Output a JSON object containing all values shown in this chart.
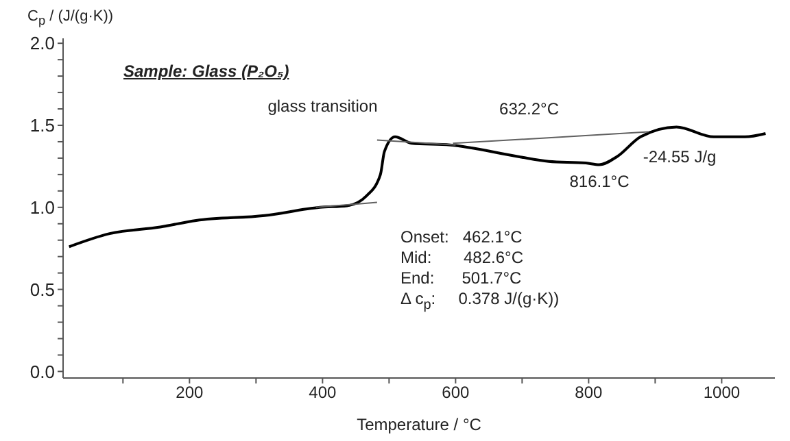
{
  "chart_data": {
    "type": "line",
    "title": "Sample: Glass (P₂O₅)",
    "xlabel": "Temperature / °C",
    "ylabel": "C$_{p}$ / (J/(g·K))",
    "xlim": [
      10,
      1080
    ],
    "ylim": [
      -0.04,
      2.03
    ],
    "xticks": [
      {
        "value": 100,
        "label": null
      },
      200,
      {
        "value": 300,
        "label": null
      },
      400,
      {
        "value": 500,
        "label": null
      },
      600,
      {
        "value": 700,
        "label": null
      },
      800,
      {
        "value": 900,
        "label": null
      },
      1000
    ],
    "yticks": [
      {
        "value": 0,
        "label": "0.0"
      },
      {
        "value": 0.1,
        "label": null
      },
      {
        "value": 0.2,
        "label": null
      },
      {
        "value": 0.3,
        "label": null
      },
      {
        "value": 0.4,
        "label": null
      },
      {
        "value": 0.5,
        "label": "0.5"
      },
      {
        "value": 0.6,
        "label": null
      },
      {
        "value": 0.7,
        "label": null
      },
      {
        "value": 0.8,
        "label": null
      },
      {
        "value": 0.9,
        "label": null
      },
      {
        "value": 1,
        "label": "1.0"
      },
      {
        "value": 1.1,
        "label": null
      },
      {
        "value": 1.2,
        "label": null
      },
      {
        "value": 1.3,
        "label": null
      },
      {
        "value": 1.4,
        "label": null
      },
      {
        "value": 1.5,
        "label": "1.5"
      },
      {
        "value": 1.6,
        "label": null
      },
      {
        "value": 1.7,
        "label": null
      },
      {
        "value": 1.8,
        "label": null
      },
      {
        "value": 1.9,
        "label": null
      },
      {
        "value": 2,
        "label": "2.0"
      }
    ],
    "marker": "none",
    "series": [
      {
        "color": "#000000",
        "x": [
          19,
          80,
          156,
          210,
          313,
          396,
          437,
          466,
          487,
          493,
          509,
          534,
          592,
          693,
          740,
          796,
          816,
          843,
          878,
          932,
          988,
          1035,
          1066
        ],
        "values": [
          0.76,
          0.84,
          0.88,
          0.92,
          0.95,
          1.0,
          1.01,
          1.07,
          1.2,
          1.34,
          1.43,
          1.39,
          1.38,
          1.31,
          1.28,
          1.27,
          1.26,
          1.31,
          1.43,
          1.49,
          1.43,
          1.43,
          1.45
        ]
      },
      {
        "type": "line",
        "color": "#606060",
        "x": [
          390,
          482
        ],
        "values": [
          1.0,
          1.03
        ]
      },
      {
        "type": "line",
        "color": "#606060",
        "x": [
          482,
          600
        ],
        "values": [
          1.41,
          1.38
        ]
      },
      {
        "type": "line",
        "color": "#606060",
        "x": [
          596,
          890
        ],
        "values": [
          1.39,
          1.46
        ]
      }
    ],
    "annotations": [
      {
        "text": "glass transition",
        "x": 482.6,
        "y": 1.4
      },
      {
        "text": "632.2°C",
        "x": 632.2,
        "y": 1.4
      },
      {
        "text": "816.1°C",
        "x": 816.1,
        "y": 1.26
      },
      {
        "text": "-24.55 J/g",
        "x": 890,
        "y": 1.46
      },
      "Onset:   462.1°C",
      "Mid:       482.6°C",
      "End:      501.7°C",
      "Δ c$_{p}$:     0.378 J/(g·K))"
    ]
  }
}
